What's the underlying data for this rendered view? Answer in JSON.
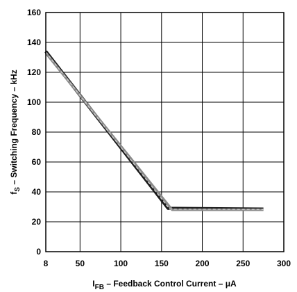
{
  "chart_data": {
    "type": "line",
    "xlabel_main": "I",
    "xlabel_sub": "FB",
    "xlabel_rest": " – Feedback Control Current – μA",
    "ylabel_main": "f",
    "ylabel_sub": "S",
    "ylabel_rest": " – Switching Frequency – kHz",
    "xlim": [
      8,
      300
    ],
    "ylim": [
      0,
      160
    ],
    "x_ticks": [
      8,
      50,
      100,
      150,
      200,
      250,
      300
    ],
    "x_tick_labels": [
      "8",
      "50",
      "100",
      "150",
      "200",
      "250",
      "300"
    ],
    "y_ticks": [
      0,
      20,
      40,
      60,
      80,
      100,
      120,
      140,
      160
    ],
    "y_tick_labels": [
      "0",
      "20",
      "40",
      "60",
      "80",
      "100",
      "120",
      "140",
      "160"
    ],
    "grid": true,
    "series": [
      {
        "color": "#1a1a1a",
        "style": "solid",
        "x": [
          8,
          158,
          275
        ],
        "y": [
          134,
          29,
          28.5
        ]
      },
      {
        "color": "#8a8a8a",
        "style": "solid",
        "x": [
          8,
          163,
          275
        ],
        "y": [
          133,
          28,
          28
        ]
      },
      {
        "color": "#c8c8c8",
        "style": "dashed",
        "x": [
          8,
          160,
          275
        ],
        "y": [
          133.5,
          28.5,
          28.3
        ]
      }
    ]
  }
}
